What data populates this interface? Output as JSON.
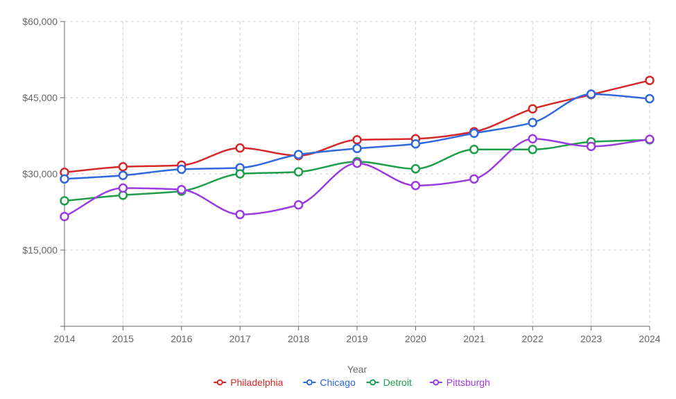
{
  "chart_data": {
    "type": "line",
    "xlabel": "Year",
    "ylabel": "",
    "ylim": [
      0,
      60000
    ],
    "y_ticks": [
      {
        "value": 15000,
        "label": "$15,000"
      },
      {
        "value": 30000,
        "label": "$30,000"
      },
      {
        "value": 45000,
        "label": "$45,000"
      },
      {
        "value": 60000,
        "label": "$60,000"
      }
    ],
    "categories": [
      "2014",
      "2015",
      "2016",
      "2017",
      "2018",
      "2019",
      "2020",
      "2021",
      "2022",
      "2023",
      "2024"
    ],
    "grid": true,
    "legend_position": "bottom-center",
    "series": [
      {
        "name": "Philadelphia",
        "color": "#d62728",
        "values": [
          30300,
          31400,
          31700,
          35100,
          33600,
          36700,
          36900,
          38300,
          42800,
          45600,
          48400
        ]
      },
      {
        "name": "Chicago",
        "color": "#2f67de",
        "values": [
          29000,
          29700,
          30900,
          31200,
          33800,
          35000,
          35900,
          38000,
          40100,
          45700,
          44800
        ]
      },
      {
        "name": "Detroit",
        "color": "#1e9e4a",
        "values": [
          24700,
          25800,
          26600,
          30000,
          30400,
          32400,
          31000,
          34800,
          34800,
          36300,
          36700
        ]
      },
      {
        "name": "Pittsburgh",
        "color": "#9b3ae3",
        "values": [
          21600,
          27200,
          26900,
          22000,
          23900,
          32100,
          27700,
          29000,
          36900,
          35400,
          36800
        ]
      }
    ]
  }
}
